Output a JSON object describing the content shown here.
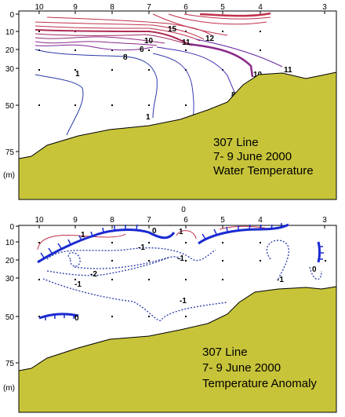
{
  "stations": [
    "10",
    "9",
    "8",
    "7",
    "6",
    "5",
    "4",
    "3"
  ],
  "depth_ticks": [
    "0",
    "10",
    "20",
    "30",
    "50",
    "75"
  ],
  "depth_unit": "(m)",
  "panel_top": {
    "title_line1": "307 Line",
    "title_line2": "7- 9 June 2000",
    "title_line3": "Water Temperature",
    "contour_labels": [
      "15",
      "12",
      "10",
      "11",
      "8",
      "6",
      "1",
      "8",
      "10",
      "11",
      "1"
    ]
  },
  "panel_bottom": {
    "title_line1": "307 Line",
    "title_line2": "7- 9 June 2000",
    "title_line3": "Temperature Anomaly",
    "extra_station_label": "0",
    "contour_labels": [
      "1",
      "0",
      "1",
      "-1",
      "-2",
      "-1",
      "-1",
      "0",
      "0",
      "-1",
      "-1"
    ]
  },
  "colors": {
    "seafloor": "#c8c43a",
    "warm_contour": "#c0304a",
    "mid_contour": "#8a2a8a",
    "cold_contour": "#2a3aa8",
    "zero_contour": "#1a2ad0"
  }
}
